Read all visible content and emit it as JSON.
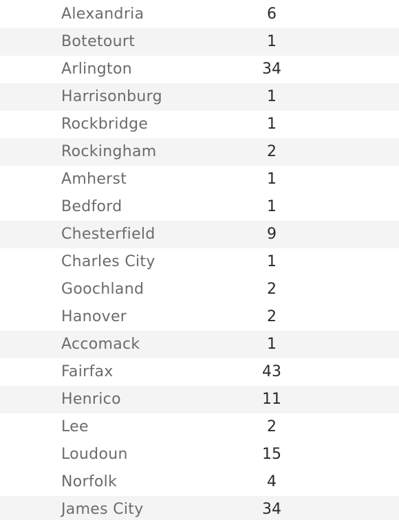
{
  "rows": [
    {
      "name": "Alexandria",
      "count": "6"
    },
    {
      "name": "Botetourt",
      "count": "1"
    },
    {
      "name": "Arlington",
      "count": "34"
    },
    {
      "name": "Harrisonburg",
      "count": "1"
    },
    {
      "name": "Rockbridge",
      "count": "1"
    },
    {
      "name": "Rockingham",
      "count": "2"
    },
    {
      "name": "Amherst",
      "count": "1"
    },
    {
      "name": "Bedford",
      "count": "1"
    },
    {
      "name": "Chesterfield",
      "count": "9"
    },
    {
      "name": "Charles City",
      "count": "1"
    },
    {
      "name": "Goochland",
      "count": "2"
    },
    {
      "name": "Hanover",
      "count": "2"
    },
    {
      "name": "Accomack",
      "count": "1"
    },
    {
      "name": "Fairfax",
      "count": "43"
    },
    {
      "name": "Henrico",
      "count": "11"
    },
    {
      "name": "Lee",
      "count": "2"
    },
    {
      "name": "Loudoun",
      "count": "15"
    },
    {
      "name": "Norfolk",
      "count": "4"
    },
    {
      "name": "James City",
      "count": "34"
    }
  ],
  "colors": {
    "row_alt_background": "#f4f4f4",
    "row_background": "#ffffff",
    "name_text": "#6b6b6b",
    "count_text": "#2a2a2a"
  }
}
